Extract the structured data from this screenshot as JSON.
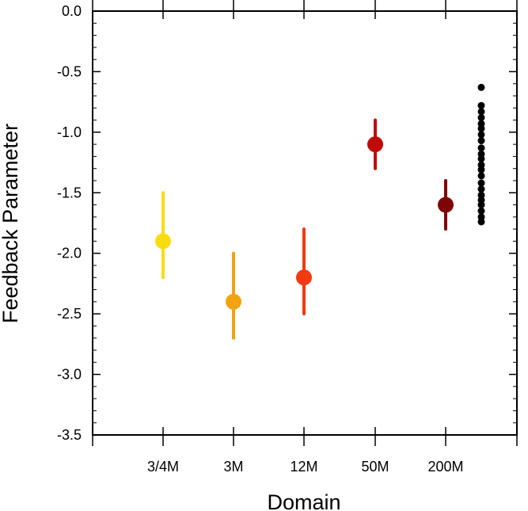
{
  "chart_data": {
    "type": "scatter",
    "xlabel": "Domain",
    "ylabel": "Feedback Parameter",
    "ylim": [
      -3.5,
      0.0
    ],
    "y_ticks": [
      "0.0",
      "-0.5",
      "-1.0",
      "-1.5",
      "-2.0",
      "-2.5",
      "-3.0",
      "-3.5"
    ],
    "y_tick_values": [
      0.0,
      -0.5,
      -1.0,
      -1.5,
      -2.0,
      -2.5,
      -3.0,
      -3.5
    ],
    "categories": [
      "3/4M",
      "3M",
      "12M",
      "50M",
      "200M"
    ],
    "series": [
      {
        "category": "3/4M",
        "value": -1.9,
        "low": -2.2,
        "high": -1.5,
        "color": "#F8DC10"
      },
      {
        "category": "3M",
        "value": -2.4,
        "low": -2.7,
        "high": -2.0,
        "color": "#F2A30F"
      },
      {
        "category": "12M",
        "value": -2.2,
        "low": -2.5,
        "high": -1.8,
        "color": "#F23A10"
      },
      {
        "category": "50M",
        "value": -1.1,
        "low": -1.3,
        "high": -0.9,
        "color": "#C00A0A"
      },
      {
        "category": "200M",
        "value": -1.6,
        "low": -1.8,
        "high": -1.4,
        "color": "#7E0505"
      }
    ],
    "ensemble": {
      "color": "#000000",
      "values": [
        -0.63,
        -0.78,
        -0.83,
        -0.88,
        -0.93,
        -0.97,
        -1.02,
        -1.07,
        -1.13,
        -1.18,
        -1.22,
        -1.27,
        -1.31,
        -1.36,
        -1.42,
        -1.47,
        -1.52,
        -1.56,
        -1.6,
        -1.65,
        -1.7,
        -1.74
      ]
    },
    "grid": false
  }
}
